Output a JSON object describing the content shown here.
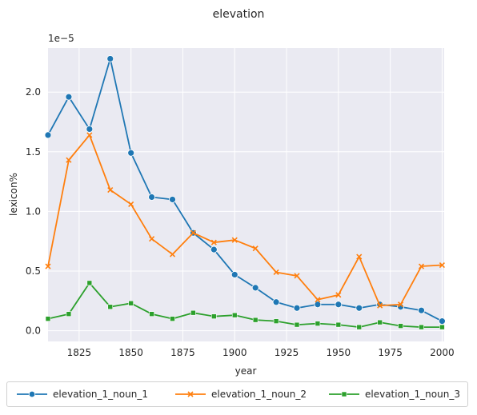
{
  "chart_data": {
    "type": "line",
    "title": "elevation",
    "xlabel": "year",
    "ylabel": "lexicon%",
    "y_offset_label": "1e−5",
    "xlim": [
      1810,
      2001
    ],
    "ylim": [
      -0.09,
      2.37
    ],
    "x_ticks": [
      1825,
      1850,
      1875,
      1900,
      1925,
      1950,
      1975,
      2000
    ],
    "y_ticks": [
      0.0,
      0.5,
      1.0,
      1.5,
      2.0
    ],
    "y_tick_labels": [
      "0.0",
      "0.5",
      "1.0",
      "1.5",
      "2.0"
    ],
    "grid": true,
    "legend_placement": "bottom",
    "x": [
      1810,
      1820,
      1830,
      1840,
      1850,
      1860,
      1870,
      1880,
      1890,
      1900,
      1910,
      1920,
      1930,
      1940,
      1950,
      1960,
      1970,
      1980,
      1990,
      2000
    ],
    "series": [
      {
        "name": "elevation_1_noun_1",
        "color": "#1f77b4",
        "marker": "circle",
        "values": [
          1.64,
          1.96,
          1.69,
          2.28,
          1.49,
          1.12,
          1.1,
          0.82,
          0.68,
          0.47,
          0.36,
          0.24,
          0.19,
          0.22,
          0.22,
          0.19,
          0.22,
          0.2,
          0.17,
          0.08
        ]
      },
      {
        "name": "elevation_1_noun_2",
        "color": "#ff7f0e",
        "marker": "x",
        "values": [
          0.54,
          1.43,
          1.64,
          1.18,
          1.06,
          0.77,
          0.64,
          0.82,
          0.74,
          0.76,
          0.69,
          0.49,
          0.46,
          0.26,
          0.3,
          0.62,
          0.21,
          0.22,
          0.54,
          0.55
        ]
      },
      {
        "name": "elevation_1_noun_3",
        "color": "#2ca02c",
        "marker": "square",
        "values": [
          0.1,
          0.14,
          0.4,
          0.2,
          0.23,
          0.14,
          0.1,
          0.15,
          0.12,
          0.13,
          0.09,
          0.08,
          0.05,
          0.06,
          0.05,
          0.03,
          0.07,
          0.04,
          0.03,
          0.03
        ]
      }
    ]
  },
  "colors": {
    "plot_background": "#eaeaf2",
    "grid": "#ffffff"
  }
}
